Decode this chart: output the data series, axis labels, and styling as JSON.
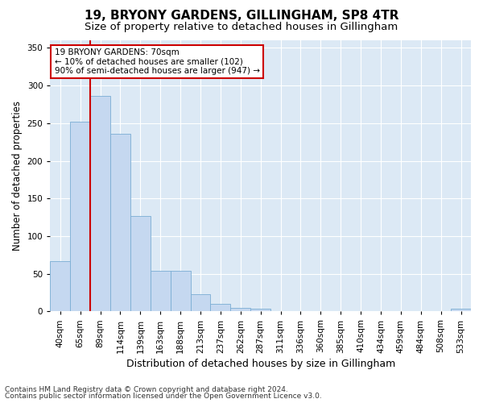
{
  "title1": "19, BRYONY GARDENS, GILLINGHAM, SP8 4TR",
  "title2": "Size of property relative to detached houses in Gillingham",
  "xlabel": "Distribution of detached houses by size in Gillingham",
  "ylabel": "Number of detached properties",
  "footnote1": "Contains HM Land Registry data © Crown copyright and database right 2024.",
  "footnote2": "Contains public sector information licensed under the Open Government Licence v3.0.",
  "categories": [
    "40sqm",
    "65sqm",
    "89sqm",
    "114sqm",
    "139sqm",
    "163sqm",
    "188sqm",
    "213sqm",
    "237sqm",
    "262sqm",
    "287sqm",
    "311sqm",
    "336sqm",
    "360sqm",
    "385sqm",
    "410sqm",
    "434sqm",
    "459sqm",
    "484sqm",
    "508sqm",
    "533sqm"
  ],
  "values": [
    67,
    252,
    286,
    236,
    127,
    54,
    54,
    23,
    10,
    5,
    4,
    0,
    0,
    0,
    0,
    0,
    0,
    0,
    0,
    0,
    4
  ],
  "bar_color": "#c5d8f0",
  "bar_edge_color": "#7aadd4",
  "red_line_x": 1.5,
  "annotation_title": "19 BRYONY GARDENS: 70sqm",
  "annotation_line1": "← 10% of detached houses are smaller (102)",
  "annotation_line2": "90% of semi-detached houses are larger (947) →",
  "annotation_box_color": "#ffffff",
  "annotation_box_edge": "#cc0000",
  "red_line_color": "#cc0000",
  "ylim": [
    0,
    360
  ],
  "background_color": "#dce9f5",
  "plot_bg_color": "#dce9f5",
  "grid_color": "#ffffff",
  "fig_bg_color": "#ffffff",
  "title1_fontsize": 11,
  "title2_fontsize": 9.5,
  "xlabel_fontsize": 9,
  "ylabel_fontsize": 8.5,
  "tick_fontsize": 7.5,
  "footnote_fontsize": 6.5,
  "annot_fontsize": 7.5
}
